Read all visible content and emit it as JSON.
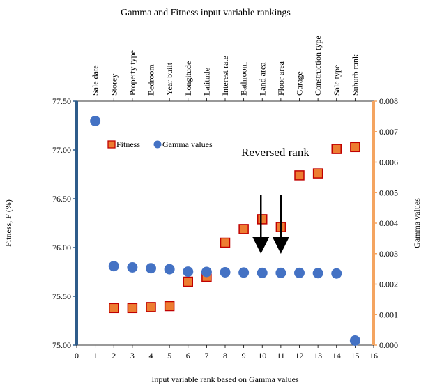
{
  "chart_data": {
    "type": "scatter",
    "title": "Gamma and Fitness input variable rankings",
    "xlabel": "Input variable rank based on Gamma values",
    "ylabel_left": "Fitness, F (%)",
    "ylabel_right": "Gamma values",
    "xlim": [
      0,
      16
    ],
    "ylim_left": [
      75.0,
      77.5
    ],
    "ylim_right": [
      0.0,
      0.008
    ],
    "x_ticks": [
      0,
      1,
      2,
      3,
      4,
      5,
      6,
      7,
      8,
      9,
      10,
      11,
      12,
      13,
      14,
      15,
      16
    ],
    "y_left_ticks": [
      "75.00",
      "75.50",
      "76.00",
      "76.50",
      "77.00",
      "77.50"
    ],
    "y_right_ticks": [
      "0.000",
      "0.001",
      "0.002",
      "0.003",
      "0.004",
      "0.005",
      "0.006",
      "0.007",
      "0.008"
    ],
    "top_categories": [
      "Sale date",
      "Storey",
      "Property type",
      "Bedroom",
      "Year built",
      "Longitude",
      "Latitude",
      "Interest rate",
      "Bathroom",
      "Land area",
      "Floor area",
      "Garage",
      "Construction type",
      "Sale type",
      "Suburb rank"
    ],
    "legend_position": "upper-left",
    "series": [
      {
        "name": "Fitness",
        "axis": "left",
        "marker": "square",
        "color": "#ED7D31",
        "x": [
          2,
          3,
          4,
          5,
          6,
          7,
          8,
          9,
          10,
          11,
          12,
          13,
          14,
          15
        ],
        "values": [
          75.38,
          75.38,
          75.39,
          75.4,
          75.65,
          75.7,
          76.05,
          76.19,
          76.29,
          76.21,
          76.74,
          76.76,
          77.01,
          77.03
        ]
      },
      {
        "name": "Gamma values",
        "axis": "right",
        "marker": "circle",
        "color": "#4472C4",
        "x": [
          1,
          2,
          3,
          4,
          5,
          6,
          7,
          8,
          9,
          10,
          11,
          12,
          13,
          14,
          15
        ],
        "values": [
          0.00735,
          0.00259,
          0.00255,
          0.00252,
          0.00249,
          0.00241,
          0.0024,
          0.00239,
          0.00238,
          0.00237,
          0.00237,
          0.00237,
          0.00236,
          0.00235,
          0.00015
        ]
      }
    ],
    "annotation": {
      "text": "Reversed rank",
      "arrows_at_x": [
        10,
        11
      ]
    },
    "colors": {
      "left_axis": "#2E5C8A",
      "right_axis": "#F4A460",
      "fitness_fill": "#ED7D31",
      "fitness_edge": "#C00000",
      "gamma_fill": "#4472C4"
    }
  }
}
